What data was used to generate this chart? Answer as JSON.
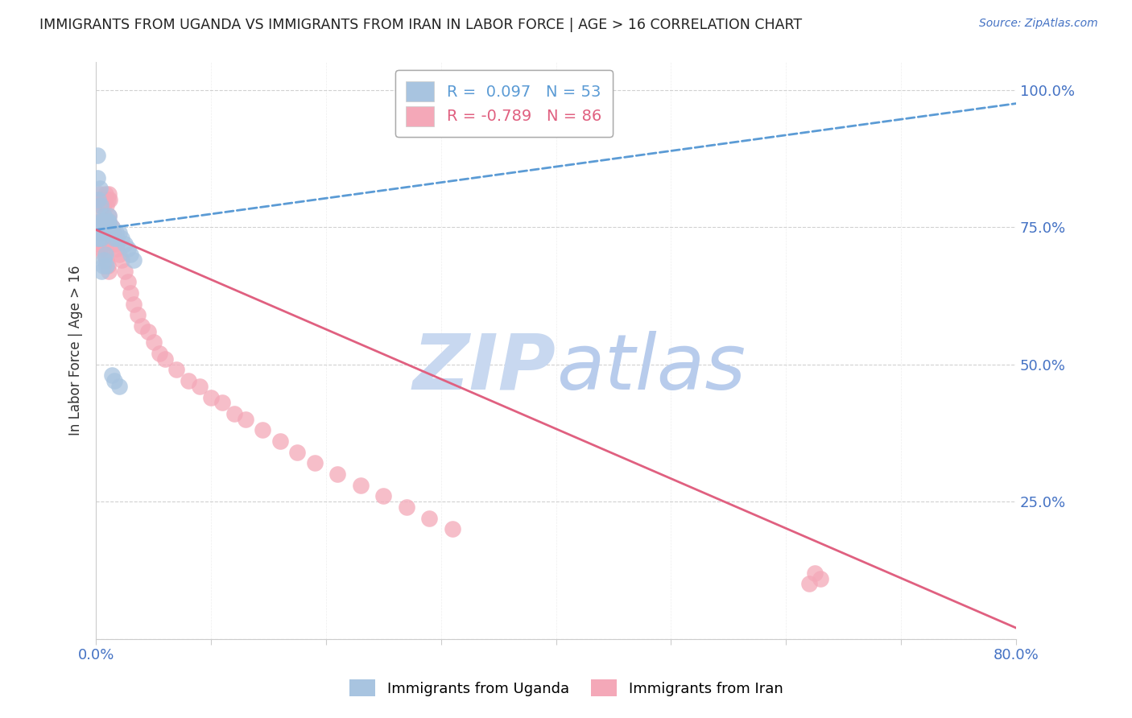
{
  "title": "IMMIGRANTS FROM UGANDA VS IMMIGRANTS FROM IRAN IN LABOR FORCE | AGE > 16 CORRELATION CHART",
  "source": "Source: ZipAtlas.com",
  "ylabel": "In Labor Force | Age > 16",
  "xlim": [
    0.0,
    0.8
  ],
  "ylim": [
    0.0,
    1.05
  ],
  "uganda_R": 0.097,
  "uganda_N": 53,
  "iran_R": -0.789,
  "iran_N": 86,
  "uganda_color": "#a8c4e0",
  "iran_color": "#f4a8b8",
  "uganda_line_color": "#5b9bd5",
  "iran_line_color": "#e06080",
  "watermark_color": "#ccddf0",
  "ug_trend_x0": 0.0,
  "ug_trend_y0": 0.745,
  "ug_trend_x1": 0.8,
  "ug_trend_y1": 0.975,
  "iran_trend_x0": 0.0,
  "iran_trend_y0": 0.745,
  "iran_trend_x1": 0.8,
  "iran_trend_y1": 0.02,
  "uganda_x": [
    0.001,
    0.001,
    0.002,
    0.002,
    0.003,
    0.003,
    0.003,
    0.004,
    0.004,
    0.004,
    0.005,
    0.005,
    0.005,
    0.006,
    0.006,
    0.006,
    0.007,
    0.007,
    0.007,
    0.008,
    0.008,
    0.009,
    0.009,
    0.01,
    0.01,
    0.011,
    0.011,
    0.012,
    0.013,
    0.014,
    0.015,
    0.016,
    0.017,
    0.018,
    0.02,
    0.022,
    0.025,
    0.028,
    0.03,
    0.033,
    0.001,
    0.001,
    0.002,
    0.003,
    0.004,
    0.005,
    0.006,
    0.007,
    0.008,
    0.009,
    0.014,
    0.016,
    0.02
  ],
  "uganda_y": [
    0.74,
    0.73,
    0.75,
    0.74,
    0.75,
    0.74,
    0.73,
    0.76,
    0.75,
    0.74,
    0.75,
    0.74,
    0.73,
    0.76,
    0.75,
    0.74,
    0.77,
    0.76,
    0.75,
    0.76,
    0.75,
    0.76,
    0.75,
    0.76,
    0.75,
    0.77,
    0.76,
    0.75,
    0.74,
    0.75,
    0.74,
    0.73,
    0.74,
    0.73,
    0.74,
    0.73,
    0.72,
    0.71,
    0.7,
    0.69,
    0.88,
    0.84,
    0.8,
    0.82,
    0.79,
    0.67,
    0.68,
    0.69,
    0.7,
    0.68,
    0.48,
    0.47,
    0.46
  ],
  "iran_x": [
    0.001,
    0.001,
    0.002,
    0.002,
    0.003,
    0.003,
    0.003,
    0.004,
    0.004,
    0.004,
    0.005,
    0.005,
    0.005,
    0.006,
    0.006,
    0.006,
    0.007,
    0.007,
    0.007,
    0.008,
    0.008,
    0.009,
    0.009,
    0.01,
    0.01,
    0.011,
    0.011,
    0.012,
    0.013,
    0.014,
    0.015,
    0.016,
    0.017,
    0.018,
    0.02,
    0.022,
    0.025,
    0.028,
    0.03,
    0.033,
    0.036,
    0.04,
    0.045,
    0.05,
    0.055,
    0.06,
    0.07,
    0.08,
    0.09,
    0.1,
    0.11,
    0.12,
    0.13,
    0.145,
    0.16,
    0.175,
    0.19,
    0.21,
    0.23,
    0.25,
    0.27,
    0.29,
    0.31,
    0.002,
    0.003,
    0.004,
    0.005,
    0.006,
    0.007,
    0.008,
    0.009,
    0.01,
    0.011,
    0.012,
    0.003,
    0.004,
    0.005,
    0.006,
    0.007,
    0.008,
    0.009,
    0.01,
    0.011,
    0.62,
    0.625,
    0.63
  ],
  "iran_y": [
    0.74,
    0.73,
    0.75,
    0.74,
    0.75,
    0.74,
    0.73,
    0.76,
    0.75,
    0.74,
    0.75,
    0.74,
    0.73,
    0.76,
    0.75,
    0.74,
    0.77,
    0.76,
    0.75,
    0.76,
    0.75,
    0.76,
    0.75,
    0.76,
    0.75,
    0.77,
    0.76,
    0.75,
    0.74,
    0.75,
    0.74,
    0.73,
    0.72,
    0.71,
    0.7,
    0.69,
    0.67,
    0.65,
    0.63,
    0.61,
    0.59,
    0.57,
    0.56,
    0.54,
    0.52,
    0.51,
    0.49,
    0.47,
    0.46,
    0.44,
    0.43,
    0.41,
    0.4,
    0.38,
    0.36,
    0.34,
    0.32,
    0.3,
    0.28,
    0.26,
    0.24,
    0.22,
    0.2,
    0.8,
    0.81,
    0.79,
    0.8,
    0.79,
    0.8,
    0.81,
    0.79,
    0.8,
    0.81,
    0.8,
    0.72,
    0.73,
    0.71,
    0.72,
    0.7,
    0.71,
    0.69,
    0.68,
    0.67,
    0.1,
    0.12,
    0.11
  ]
}
